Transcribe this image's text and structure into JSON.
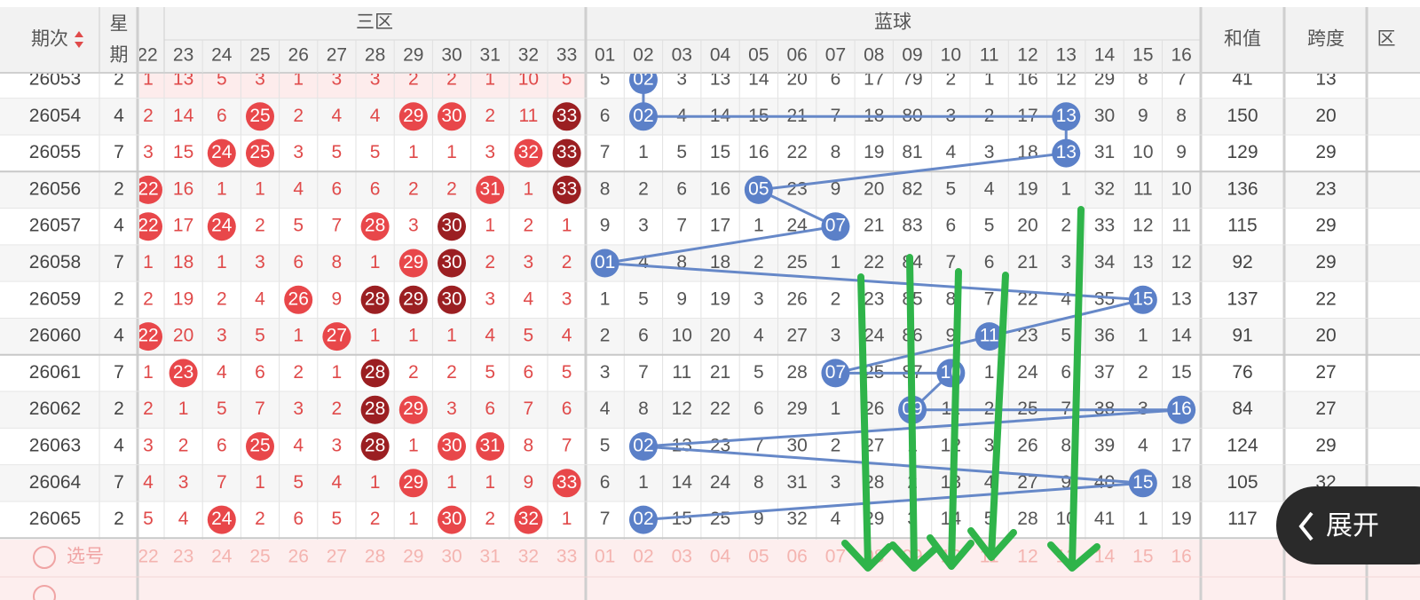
{
  "header": {
    "period": "期次",
    "weekday": [
      "星",
      "期"
    ],
    "zone3": "三区",
    "blue": "蓝球",
    "sum": "和值",
    "span": "跨度",
    "zone_cut": "区",
    "partial_col": "22",
    "zone3_cols": [
      "23",
      "24",
      "25",
      "26",
      "27",
      "28",
      "29",
      "30",
      "31",
      "32",
      "33"
    ],
    "blue_cols": [
      "01",
      "02",
      "03",
      "04",
      "05",
      "06",
      "07",
      "08",
      "09",
      "10",
      "11",
      "12",
      "13",
      "14",
      "15",
      "16"
    ]
  },
  "rows": [
    {
      "period": "26053",
      "weekday": "2",
      "partial": "1",
      "zone3": [
        "13",
        "5",
        "3",
        "1",
        "3",
        "3",
        "2",
        "2",
        "1",
        "10",
        "5"
      ],
      "blue": [
        "5",
        "02",
        "3",
        "13",
        "14",
        "20",
        "6",
        "17",
        "79",
        "2",
        "1",
        "16",
        "12",
        "29",
        "8",
        "7"
      ],
      "sum": "41",
      "span": "13",
      "dark": []
    },
    {
      "period": "26054",
      "weekday": "4",
      "partial": "2",
      "zone3": [
        "14",
        "6",
        "25",
        "2",
        "4",
        "4",
        "29",
        "30",
        "2",
        "11",
        "33"
      ],
      "blue": [
        "6",
        "02",
        "4",
        "14",
        "15",
        "21",
        "7",
        "18",
        "80",
        "3",
        "2",
        "17",
        "13",
        "30",
        "9",
        "8"
      ],
      "sum": "150",
      "span": "20",
      "dark": [
        10
      ]
    },
    {
      "period": "26055",
      "weekday": "7",
      "partial": "3",
      "zone3": [
        "15",
        "24",
        "25",
        "3",
        "5",
        "5",
        "1",
        "1",
        "3",
        "32",
        "33"
      ],
      "blue": [
        "7",
        "1",
        "5",
        "15",
        "16",
        "22",
        "8",
        "19",
        "81",
        "4",
        "3",
        "18",
        "13",
        "31",
        "10",
        "9"
      ],
      "sum": "129",
      "span": "29",
      "dark": [
        10
      ]
    },
    {
      "period": "26056",
      "weekday": "2",
      "partial": "22",
      "zone3": [
        "16",
        "1",
        "1",
        "4",
        "6",
        "6",
        "2",
        "2",
        "31",
        "1",
        "33"
      ],
      "blue": [
        "8",
        "2",
        "6",
        "16",
        "05",
        "23",
        "9",
        "20",
        "82",
        "5",
        "4",
        "19",
        "1",
        "32",
        "11",
        "10"
      ],
      "sum": "136",
      "span": "23",
      "dark": [
        10
      ]
    },
    {
      "period": "26057",
      "weekday": "4",
      "partial": "22",
      "zone3": [
        "17",
        "24",
        "2",
        "5",
        "7",
        "28",
        "3",
        "30",
        "1",
        "2",
        "1"
      ],
      "blue": [
        "9",
        "3",
        "7",
        "17",
        "1",
        "24",
        "07",
        "21",
        "83",
        "6",
        "5",
        "20",
        "2",
        "33",
        "12",
        "11"
      ],
      "sum": "115",
      "span": "29",
      "dark": [
        7
      ]
    },
    {
      "period": "26058",
      "weekday": "7",
      "partial": "1",
      "zone3": [
        "18",
        "1",
        "3",
        "6",
        "8",
        "1",
        "29",
        "30",
        "2",
        "3",
        "2"
      ],
      "blue": [
        "01",
        "4",
        "8",
        "18",
        "2",
        "25",
        "1",
        "22",
        "84",
        "7",
        "6",
        "21",
        "3",
        "34",
        "13",
        "12"
      ],
      "sum": "92",
      "span": "29",
      "dark": [
        7
      ]
    },
    {
      "period": "26059",
      "weekday": "2",
      "partial": "2",
      "zone3": [
        "19",
        "2",
        "4",
        "26",
        "9",
        "28",
        "29",
        "30",
        "3",
        "4",
        "3"
      ],
      "blue": [
        "1",
        "5",
        "9",
        "19",
        "3",
        "26",
        "2",
        "23",
        "85",
        "8",
        "7",
        "22",
        "4",
        "35",
        "15",
        "13"
      ],
      "sum": "137",
      "span": "22",
      "dark": [
        5,
        6,
        7
      ]
    },
    {
      "period": "26060",
      "weekday": "4",
      "partial": "22",
      "zone3": [
        "20",
        "3",
        "5",
        "1",
        "27",
        "1",
        "1",
        "1",
        "4",
        "5",
        "4"
      ],
      "blue": [
        "2",
        "6",
        "10",
        "20",
        "4",
        "27",
        "3",
        "24",
        "86",
        "9",
        "11",
        "23",
        "5",
        "36",
        "1",
        "14"
      ],
      "sum": "91",
      "span": "20",
      "dark": []
    },
    {
      "period": "26061",
      "weekday": "7",
      "partial": "1",
      "zone3": [
        "23",
        "4",
        "6",
        "2",
        "1",
        "28",
        "2",
        "2",
        "5",
        "6",
        "5"
      ],
      "blue": [
        "3",
        "7",
        "11",
        "21",
        "5",
        "28",
        "07",
        "25",
        "87",
        "10",
        "1",
        "24",
        "6",
        "37",
        "2",
        "15"
      ],
      "sum": "76",
      "span": "27",
      "dark": [
        5
      ]
    },
    {
      "period": "26062",
      "weekday": "2",
      "partial": "2",
      "zone3": [
        "1",
        "5",
        "7",
        "3",
        "2",
        "28",
        "29",
        "3",
        "6",
        "7",
        "6"
      ],
      "blue": [
        "4",
        "8",
        "12",
        "22",
        "6",
        "29",
        "1",
        "26",
        "09",
        "11",
        "2",
        "25",
        "7",
        "38",
        "3",
        "16"
      ],
      "sum": "84",
      "span": "27",
      "dark": [
        5
      ]
    },
    {
      "period": "26063",
      "weekday": "4",
      "partial": "3",
      "zone3": [
        "2",
        "6",
        "25",
        "4",
        "3",
        "28",
        "1",
        "30",
        "31",
        "8",
        "7"
      ],
      "blue": [
        "5",
        "02",
        "13",
        "23",
        "7",
        "30",
        "2",
        "27",
        "1",
        "12",
        "3",
        "26",
        "8",
        "39",
        "4",
        "17"
      ],
      "sum": "124",
      "span": "29",
      "dark": [
        5
      ]
    },
    {
      "period": "26064",
      "weekday": "7",
      "partial": "4",
      "zone3": [
        "3",
        "7",
        "1",
        "5",
        "4",
        "1",
        "29",
        "1",
        "1",
        "9",
        "33"
      ],
      "blue": [
        "6",
        "1",
        "14",
        "24",
        "8",
        "31",
        "3",
        "28",
        "2",
        "13",
        "4",
        "27",
        "9",
        "40",
        "15",
        "18"
      ],
      "sum": "105",
      "span": "32",
      "dark": []
    },
    {
      "period": "26065",
      "weekday": "2",
      "partial": "5",
      "zone3": [
        "4",
        "24",
        "2",
        "6",
        "5",
        "2",
        "1",
        "30",
        "2",
        "32",
        "1"
      ],
      "blue": [
        "7",
        "02",
        "15",
        "25",
        "9",
        "32",
        "4",
        "29",
        "3",
        "14",
        "5",
        "28",
        "10",
        "41",
        "1",
        "19"
      ],
      "sum": "117",
      "dark": []
    }
  ],
  "select": {
    "label": "选号",
    "partial": "22",
    "zone3": [
      "23",
      "24",
      "25",
      "26",
      "27",
      "28",
      "29",
      "30",
      "31",
      "32",
      "33"
    ],
    "blue": [
      "01",
      "02",
      "03",
      "04",
      "05",
      "06",
      "07",
      "08",
      "09",
      "10",
      "11",
      "12",
      "13",
      "14",
      "15",
      "16"
    ]
  },
  "button": "展开"
}
